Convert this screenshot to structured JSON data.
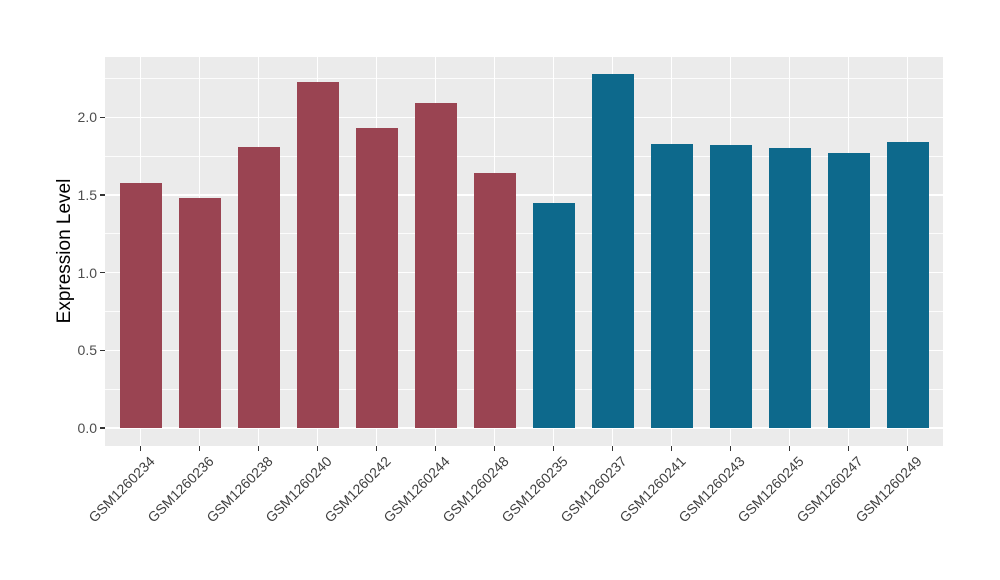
{
  "chart_data": {
    "type": "bar",
    "title": "",
    "xlabel": "",
    "ylabel": "Expression Level",
    "ylim": [
      0,
      2.39
    ],
    "yticks": [
      0,
      0.5,
      1.0,
      1.5,
      2.0
    ],
    "ytick_labels": [
      "0.0",
      "0.5",
      "1.0",
      "1.5",
      "2.0"
    ],
    "yticks_minor": [
      0.25,
      0.75,
      1.25,
      1.75,
      2.25
    ],
    "grid": "on",
    "legend": "none",
    "panel_background": "#EBEBEB",
    "gridline_color": "#FFFFFF",
    "axis_text_color": "#4D4D4D",
    "categories": [
      "GSM1260234",
      "GSM1260236",
      "GSM1260238",
      "GSM1260240",
      "GSM1260242",
      "GSM1260244",
      "GSM1260248",
      "GSM1260235",
      "GSM1260237",
      "GSM1260241",
      "GSM1260243",
      "GSM1260245",
      "GSM1260247",
      "GSM1260249"
    ],
    "values": [
      1.58,
      1.48,
      1.81,
      2.23,
      1.93,
      2.09,
      1.64,
      1.45,
      2.28,
      1.83,
      1.82,
      1.8,
      1.77,
      1.84
    ],
    "groups": [
      "group1",
      "group1",
      "group1",
      "group1",
      "group1",
      "group1",
      "group1",
      "group2",
      "group2",
      "group2",
      "group2",
      "group2",
      "group2",
      "group2"
    ],
    "group_colors": {
      "group1": "#9A4452",
      "group2": "#0D698C"
    }
  }
}
